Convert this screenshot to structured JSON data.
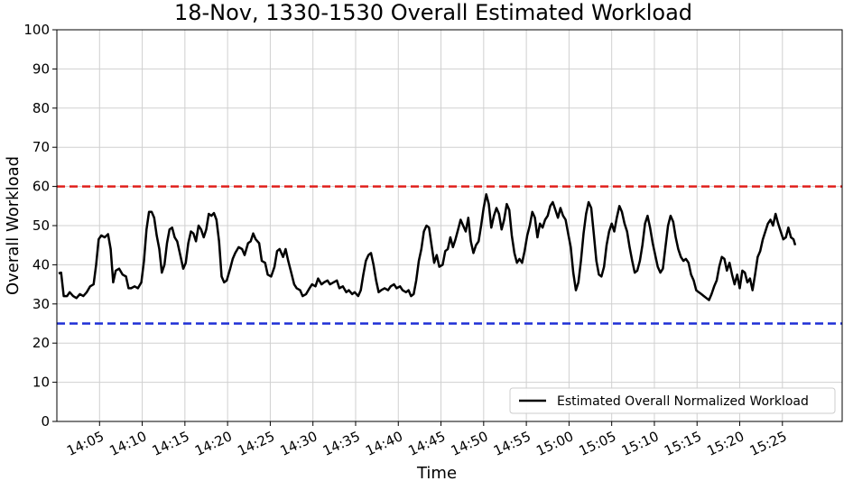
{
  "chart_data": {
    "type": "line",
    "title": "18-Nov, 1330-1530 Overall Estimated Workload",
    "xlabel": "Time",
    "ylabel": "Overall Workload",
    "ylim": [
      0,
      100
    ],
    "yticks": [
      0,
      10,
      20,
      30,
      40,
      50,
      60,
      70,
      80,
      90,
      100
    ],
    "xlim_min": [
      840,
      932
    ],
    "xticks": [
      {
        "min": 845,
        "label": "14:05"
      },
      {
        "min": 850,
        "label": "14:10"
      },
      {
        "min": 855,
        "label": "14:15"
      },
      {
        "min": 860,
        "label": "14:20"
      },
      {
        "min": 865,
        "label": "14:25"
      },
      {
        "min": 870,
        "label": "14:30"
      },
      {
        "min": 875,
        "label": "14:35"
      },
      {
        "min": 880,
        "label": "14:40"
      },
      {
        "min": 885,
        "label": "14:45"
      },
      {
        "min": 890,
        "label": "14:50"
      },
      {
        "min": 895,
        "label": "14:55"
      },
      {
        "min": 900,
        "label": "15:00"
      },
      {
        "min": 905,
        "label": "15:05"
      },
      {
        "min": 910,
        "label": "15:10"
      },
      {
        "min": 915,
        "label": "15:15"
      },
      {
        "min": 920,
        "label": "15:20"
      },
      {
        "min": 925,
        "label": "15:25"
      }
    ],
    "grid": true,
    "legend_position": "bottom-right",
    "reference_lines": [
      {
        "y": 60,
        "color": "#e0201c",
        "style": "dashed"
      },
      {
        "y": 25,
        "color": "#1f2fd6",
        "style": "dashed"
      }
    ],
    "series": [
      {
        "name": "Estimated Overall Normalized Workload",
        "color": "#000000",
        "points": [
          [
            840.2,
            37.8
          ],
          [
            840.5,
            38.0
          ],
          [
            840.8,
            32.0
          ],
          [
            841.2,
            32.0
          ],
          [
            841.5,
            33.0
          ],
          [
            841.9,
            32.0
          ],
          [
            842.3,
            31.5
          ],
          [
            842.7,
            32.5
          ],
          [
            843.1,
            32.0
          ],
          [
            843.5,
            33.0
          ],
          [
            843.9,
            34.5
          ],
          [
            844.3,
            35.0
          ],
          [
            844.6,
            40.0
          ],
          [
            844.9,
            46.5
          ],
          [
            845.2,
            47.5
          ],
          [
            845.6,
            47.0
          ],
          [
            846.0,
            47.8
          ],
          [
            846.3,
            44.0
          ],
          [
            846.6,
            35.5
          ],
          [
            846.9,
            38.5
          ],
          [
            847.3,
            39.0
          ],
          [
            847.7,
            37.5
          ],
          [
            848.1,
            37.0
          ],
          [
            848.4,
            34.0
          ],
          [
            848.7,
            34.0
          ],
          [
            849.1,
            34.5
          ],
          [
            849.5,
            34.0
          ],
          [
            849.9,
            35.5
          ],
          [
            850.2,
            41.0
          ],
          [
            850.5,
            49.0
          ],
          [
            850.8,
            53.5
          ],
          [
            851.1,
            53.5
          ],
          [
            851.4,
            52.0
          ],
          [
            851.7,
            47.5
          ],
          [
            852.0,
            44.0
          ],
          [
            852.3,
            38.0
          ],
          [
            852.6,
            40.0
          ],
          [
            852.9,
            45.5
          ],
          [
            853.2,
            49.0
          ],
          [
            853.5,
            49.5
          ],
          [
            853.8,
            47.0
          ],
          [
            854.1,
            46.0
          ],
          [
            854.4,
            43.0
          ],
          [
            854.8,
            39.0
          ],
          [
            855.1,
            40.5
          ],
          [
            855.4,
            45.5
          ],
          [
            855.7,
            48.5
          ],
          [
            856.0,
            48.0
          ],
          [
            856.3,
            46.0
          ],
          [
            856.6,
            50.0
          ],
          [
            856.9,
            49.0
          ],
          [
            857.2,
            47.0
          ],
          [
            857.5,
            49.0
          ],
          [
            857.8,
            53.0
          ],
          [
            858.1,
            52.5
          ],
          [
            858.4,
            53.2
          ],
          [
            858.7,
            51.5
          ],
          [
            859.0,
            46.0
          ],
          [
            859.3,
            37.0
          ],
          [
            859.6,
            35.5
          ],
          [
            859.9,
            36.0
          ],
          [
            860.3,
            39.0
          ],
          [
            860.6,
            41.5
          ],
          [
            860.9,
            43.0
          ],
          [
            861.3,
            44.5
          ],
          [
            861.7,
            44.0
          ],
          [
            862.0,
            42.5
          ],
          [
            862.4,
            45.5
          ],
          [
            862.7,
            46.0
          ],
          [
            863.0,
            48.0
          ],
          [
            863.3,
            46.5
          ],
          [
            863.7,
            45.5
          ],
          [
            864.0,
            41.0
          ],
          [
            864.4,
            40.5
          ],
          [
            864.7,
            37.5
          ],
          [
            865.1,
            37.0
          ],
          [
            865.5,
            39.5
          ],
          [
            865.8,
            43.5
          ],
          [
            866.1,
            44.0
          ],
          [
            866.5,
            42.0
          ],
          [
            866.8,
            44.0
          ],
          [
            867.1,
            41.0
          ],
          [
            867.4,
            38.5
          ],
          [
            867.8,
            35.0
          ],
          [
            868.1,
            34.0
          ],
          [
            868.5,
            33.5
          ],
          [
            868.8,
            32.0
          ],
          [
            869.2,
            32.5
          ],
          [
            869.6,
            34.0
          ],
          [
            869.9,
            35.0
          ],
          [
            870.3,
            34.5
          ],
          [
            870.6,
            36.5
          ],
          [
            871.0,
            35.0
          ],
          [
            871.3,
            35.5
          ],
          [
            871.7,
            36.0
          ],
          [
            872.0,
            35.0
          ],
          [
            872.4,
            35.5
          ],
          [
            872.8,
            36.0
          ],
          [
            873.1,
            34.0
          ],
          [
            873.5,
            34.5
          ],
          [
            873.9,
            33.0
          ],
          [
            874.2,
            33.5
          ],
          [
            874.6,
            32.5
          ],
          [
            874.9,
            33.0
          ],
          [
            875.3,
            32.0
          ],
          [
            875.6,
            33.5
          ],
          [
            875.9,
            37.5
          ],
          [
            876.2,
            41.0
          ],
          [
            876.5,
            42.5
          ],
          [
            876.8,
            43.0
          ],
          [
            877.1,
            40.0
          ],
          [
            877.4,
            36.0
          ],
          [
            877.7,
            33.0
          ],
          [
            878.0,
            33.5
          ],
          [
            878.4,
            34.0
          ],
          [
            878.8,
            33.5
          ],
          [
            879.1,
            34.5
          ],
          [
            879.5,
            35.0
          ],
          [
            879.8,
            34.0
          ],
          [
            880.2,
            34.5
          ],
          [
            880.5,
            33.5
          ],
          [
            880.9,
            33.0
          ],
          [
            881.2,
            33.5
          ],
          [
            881.5,
            32.0
          ],
          [
            881.8,
            32.5
          ],
          [
            882.1,
            36.0
          ],
          [
            882.4,
            41.0
          ],
          [
            882.7,
            44.0
          ],
          [
            883.0,
            48.5
          ],
          [
            883.3,
            50.0
          ],
          [
            883.6,
            49.5
          ],
          [
            883.9,
            45.0
          ],
          [
            884.2,
            40.5
          ],
          [
            884.5,
            42.5
          ],
          [
            884.8,
            39.5
          ],
          [
            885.2,
            40.0
          ],
          [
            885.5,
            43.5
          ],
          [
            885.8,
            44.0
          ],
          [
            886.1,
            47.0
          ],
          [
            886.4,
            44.5
          ],
          [
            886.7,
            46.5
          ],
          [
            887.0,
            49.0
          ],
          [
            887.3,
            51.5
          ],
          [
            887.6,
            50.0
          ],
          [
            887.9,
            48.5
          ],
          [
            888.2,
            52.0
          ],
          [
            888.5,
            46.0
          ],
          [
            888.8,
            43.0
          ],
          [
            889.1,
            45.0
          ],
          [
            889.4,
            46.0
          ],
          [
            889.7,
            50.0
          ],
          [
            890.0,
            54.5
          ],
          [
            890.3,
            58.0
          ],
          [
            890.6,
            55.5
          ],
          [
            890.9,
            49.5
          ],
          [
            891.2,
            52.5
          ],
          [
            891.5,
            54.5
          ],
          [
            891.8,
            53.0
          ],
          [
            892.1,
            49.0
          ],
          [
            892.4,
            51.5
          ],
          [
            892.7,
            55.5
          ],
          [
            893.0,
            54.0
          ],
          [
            893.3,
            47.5
          ],
          [
            893.6,
            43.0
          ],
          [
            893.9,
            40.5
          ],
          [
            894.2,
            41.5
          ],
          [
            894.5,
            40.5
          ],
          [
            894.8,
            43.5
          ],
          [
            895.1,
            47.5
          ],
          [
            895.4,
            50.0
          ],
          [
            895.7,
            53.5
          ],
          [
            896.0,
            52.0
          ],
          [
            896.3,
            47.0
          ],
          [
            896.6,
            50.5
          ],
          [
            896.9,
            49.5
          ],
          [
            897.2,
            51.5
          ],
          [
            897.5,
            52.5
          ],
          [
            897.8,
            55.0
          ],
          [
            898.1,
            56.0
          ],
          [
            898.4,
            54.0
          ],
          [
            898.7,
            52.0
          ],
          [
            899.0,
            54.5
          ],
          [
            899.3,
            52.5
          ],
          [
            899.6,
            51.5
          ],
          [
            899.9,
            48.0
          ],
          [
            900.2,
            44.5
          ],
          [
            900.5,
            38.0
          ],
          [
            900.8,
            33.5
          ],
          [
            901.1,
            35.5
          ],
          [
            901.4,
            41.0
          ],
          [
            901.7,
            48.0
          ],
          [
            902.0,
            53.0
          ],
          [
            902.3,
            56.0
          ],
          [
            902.6,
            54.5
          ],
          [
            902.9,
            48.0
          ],
          [
            903.2,
            41.0
          ],
          [
            903.5,
            37.5
          ],
          [
            903.8,
            37.0
          ],
          [
            904.1,
            39.5
          ],
          [
            904.4,
            45.0
          ],
          [
            904.7,
            48.5
          ],
          [
            905.0,
            50.5
          ],
          [
            905.3,
            48.5
          ],
          [
            905.6,
            52.0
          ],
          [
            905.9,
            55.0
          ],
          [
            906.2,
            53.5
          ],
          [
            906.5,
            50.5
          ],
          [
            906.8,
            48.5
          ],
          [
            907.1,
            44.5
          ],
          [
            907.4,
            41.0
          ],
          [
            907.7,
            38.0
          ],
          [
            908.0,
            38.5
          ],
          [
            908.3,
            41.0
          ],
          [
            908.6,
            45.0
          ],
          [
            908.9,
            50.5
          ],
          [
            909.2,
            52.5
          ],
          [
            909.5,
            49.5
          ],
          [
            909.8,
            45.5
          ],
          [
            910.1,
            42.5
          ],
          [
            910.4,
            39.5
          ],
          [
            910.7,
            38.0
          ],
          [
            911.0,
            39.0
          ],
          [
            911.3,
            44.5
          ],
          [
            911.6,
            50.0
          ],
          [
            911.9,
            52.5
          ],
          [
            912.2,
            51.0
          ],
          [
            912.5,
            47.0
          ],
          [
            912.8,
            44.0
          ],
          [
            913.1,
            42.0
          ],
          [
            913.4,
            41.0
          ],
          [
            913.7,
            41.5
          ],
          [
            914.0,
            40.5
          ],
          [
            914.3,
            37.5
          ],
          [
            914.6,
            36.0
          ],
          [
            914.9,
            33.5
          ],
          [
            915.2,
            33.0
          ],
          [
            915.5,
            32.5
          ],
          [
            915.8,
            32.0
          ],
          [
            916.1,
            31.5
          ],
          [
            916.4,
            31.0
          ],
          [
            916.7,
            32.5
          ],
          [
            917.0,
            34.5
          ],
          [
            917.3,
            36.0
          ],
          [
            917.6,
            39.5
          ],
          [
            917.9,
            42.0
          ],
          [
            918.2,
            41.5
          ],
          [
            918.5,
            38.5
          ],
          [
            918.8,
            40.5
          ],
          [
            919.1,
            37.5
          ],
          [
            919.4,
            35.0
          ],
          [
            919.7,
            37.5
          ],
          [
            920.0,
            34.0
          ],
          [
            920.3,
            38.5
          ],
          [
            920.6,
            38.0
          ],
          [
            920.9,
            35.5
          ],
          [
            921.2,
            36.5
          ],
          [
            921.5,
            33.5
          ],
          [
            921.8,
            37.5
          ],
          [
            922.1,
            42.0
          ],
          [
            922.4,
            43.5
          ],
          [
            922.7,
            46.5
          ],
          [
            923.0,
            48.5
          ],
          [
            923.3,
            50.5
          ],
          [
            923.6,
            51.5
          ],
          [
            923.9,
            50.0
          ],
          [
            924.2,
            53.0
          ],
          [
            924.5,
            50.5
          ],
          [
            924.8,
            48.5
          ],
          [
            925.1,
            46.5
          ],
          [
            925.4,
            47.0
          ],
          [
            925.7,
            49.5
          ],
          [
            926.0,
            47.0
          ],
          [
            926.3,
            46.5
          ],
          [
            926.5,
            45.0
          ]
        ]
      }
    ]
  }
}
